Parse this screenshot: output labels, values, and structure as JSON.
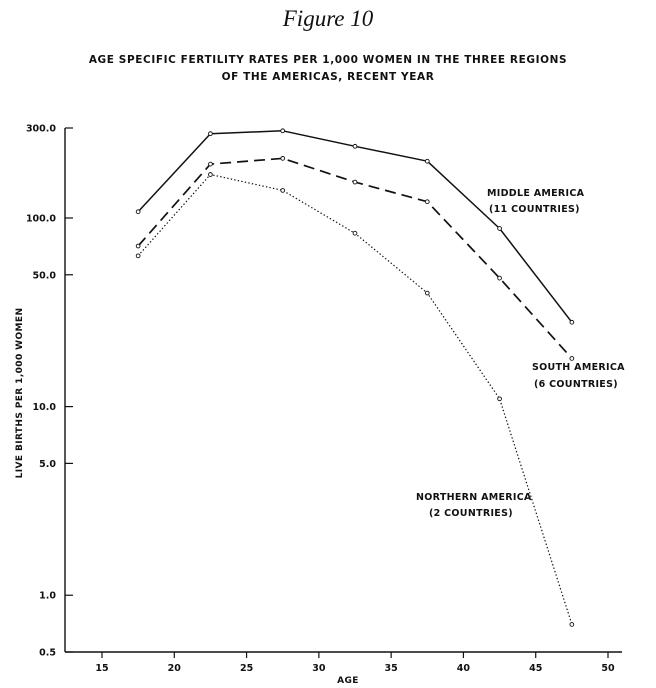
{
  "figure_label": "Figure 10",
  "chart_data": {
    "type": "line",
    "title_line1": "AGE SPECIFIC FERTILITY RATES PER 1,000 WOMEN IN THE THREE REGIONS",
    "title_line2": "OF THE AMERICAS, RECENT YEAR",
    "xlabel": "AGE",
    "ylabel": "LIVE BIRTHS PER 1,000 WOMEN",
    "xlim": [
      12.5,
      52.5
    ],
    "ylim": [
      0.5,
      300
    ],
    "yscale": "log",
    "x_ticks": [
      15,
      20,
      25,
      30,
      35,
      40,
      45,
      50
    ],
    "x_tick_labels": [
      "15",
      "20",
      "25",
      "30",
      "35",
      "40",
      "45",
      "50"
    ],
    "y_ticks": [
      0.5,
      1.0,
      5.0,
      10.0,
      50.0,
      100.0,
      300.0
    ],
    "y_tick_labels": [
      "0.5",
      "1.0",
      "5.0",
      "10.0",
      "50.0",
      "100.0",
      "300.0"
    ],
    "x": [
      17.5,
      22.5,
      27.5,
      32.5,
      37.5,
      42.5,
      47.5
    ],
    "series": [
      {
        "name": "MIDDLE AMERICA",
        "name_line2": "(11 COUNTRIES)",
        "style": "solid",
        "values": [
          108,
          280,
          290,
          240,
          200,
          88,
          28
        ]
      },
      {
        "name": "SOUTH AMERICA",
        "name_line2": "(6 COUNTRIES)",
        "style": "dashed",
        "values": [
          71,
          193,
          207,
          155,
          122,
          48,
          18
        ]
      },
      {
        "name": "NORTHERN AMERICA",
        "name_line2": "(2 COUNTRIES)",
        "style": "dotted",
        "values": [
          63,
          170,
          140,
          83,
          40,
          11,
          0.7
        ]
      }
    ],
    "grid": false
  }
}
